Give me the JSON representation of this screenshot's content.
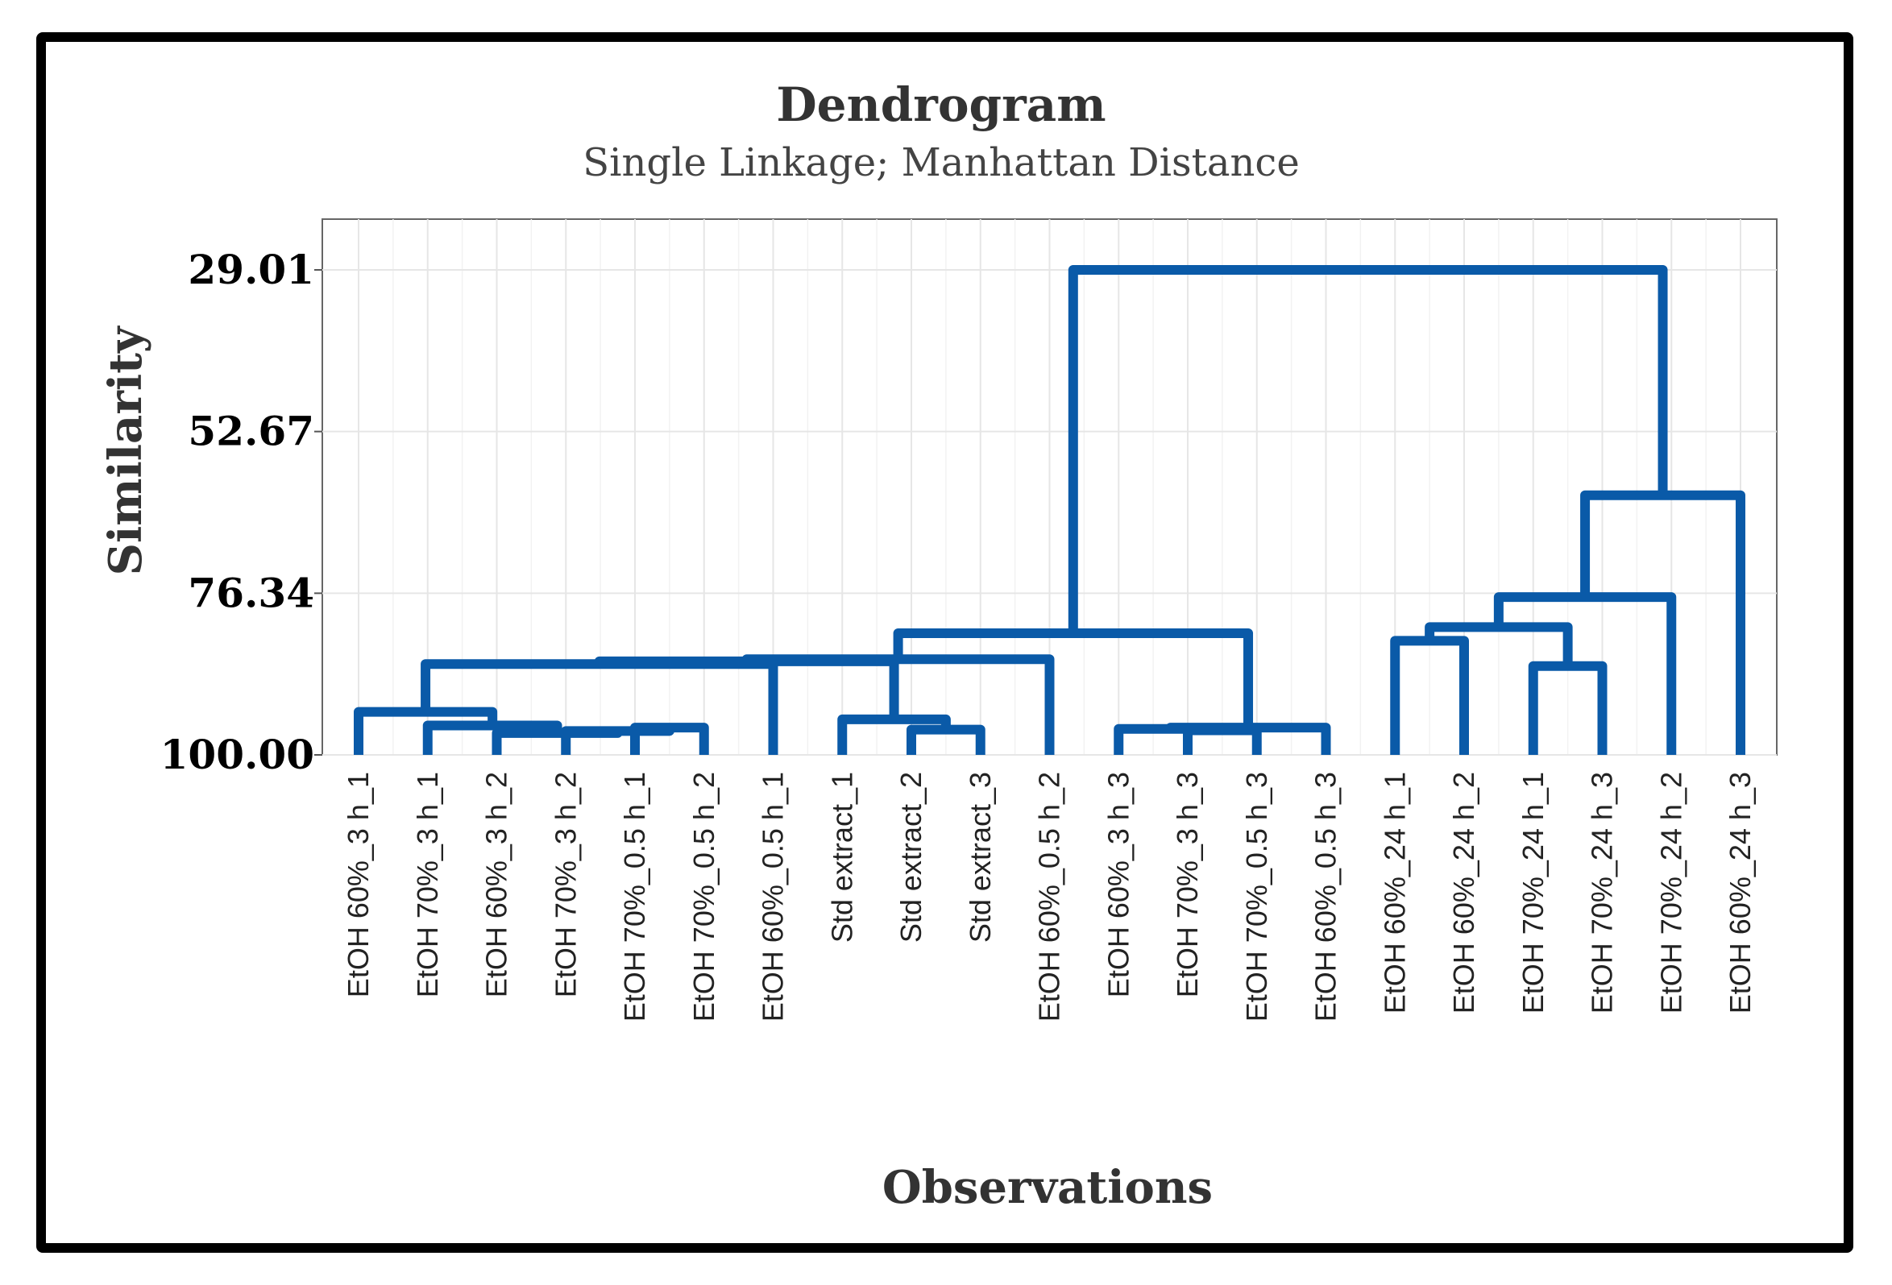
{
  "chart_data": {
    "type": "dendrogram",
    "title": "Dendrogram",
    "subtitle": "Single Linkage; Manhattan Distance",
    "xlabel": "Observations",
    "ylabel": "Similarity",
    "y_ticks": [
      "29.01",
      "52.67",
      "76.34",
      "100.00"
    ],
    "y_tick_values": [
      29.01,
      52.67,
      76.34,
      100.0
    ],
    "ylim": [
      21.5,
      100.0
    ],
    "line_color": "#0a5aa8",
    "grid": true,
    "leaves": [
      "EtOH 60%_3 h_1",
      "EtOH 70%_3 h_1",
      "EtOH 60%_3 h_2",
      "EtOH 70%_3 h_2",
      "EtOH 70%_0.5 h_1",
      "EtOH 70%_0.5 h_2",
      "EtOH 60%_0.5 h_1",
      "Std extract_1",
      "Std extract_2",
      "Std extract_3",
      "EtOH 60%_0.5 h_2",
      "EtOH 60%_3 h_3",
      "EtOH 70%_3 h_3",
      "EtOH 70%_0.5 h_3",
      "EtOH 60%_0.5 h_3",
      "EtOH 60%_24 h_1",
      "EtOH 60%_24 h_2",
      "EtOH 70%_24 h_1",
      "EtOH 70%_24 h_3",
      "EtOH 70%_24 h_2",
      "EtOH 60%_24 h_3"
    ],
    "merges": [
      {
        "left": 4,
        "right": 5,
        "similarity": 96.0
      },
      {
        "left": 3,
        "right": 21,
        "similarity": 96.5
      },
      {
        "left": 2,
        "right": 22,
        "similarity": 96.8
      },
      {
        "left": 1,
        "right": 23,
        "similarity": 95.7
      },
      {
        "left": 0,
        "right": 24,
        "similarity": 93.7
      },
      {
        "left": 8,
        "right": 9,
        "similarity": 96.3
      },
      {
        "left": 7,
        "right": 26,
        "similarity": 94.8
      },
      {
        "left": 12,
        "right": 13,
        "similarity": 96.4
      },
      {
        "left": 11,
        "right": 28,
        "similarity": 96.2
      },
      {
        "left": 29,
        "right": 14,
        "similarity": 96.0
      },
      {
        "left": 25,
        "right": 6,
        "similarity": 86.7
      },
      {
        "left": 31,
        "right": 27,
        "similarity": 86.3
      },
      {
        "left": 32,
        "right": 10,
        "similarity": 86.0
      },
      {
        "left": 33,
        "right": 30,
        "similarity": 82.2
      },
      {
        "left": 15,
        "right": 16,
        "similarity": 83.3
      },
      {
        "left": 17,
        "right": 18,
        "similarity": 87.0
      },
      {
        "left": 35,
        "right": 36,
        "similarity": 81.3
      },
      {
        "left": 37,
        "right": 19,
        "similarity": 76.9
      },
      {
        "left": 38,
        "right": 20,
        "similarity": 62.0
      },
      {
        "left": 34,
        "right": 39,
        "similarity": 29.01
      }
    ]
  }
}
